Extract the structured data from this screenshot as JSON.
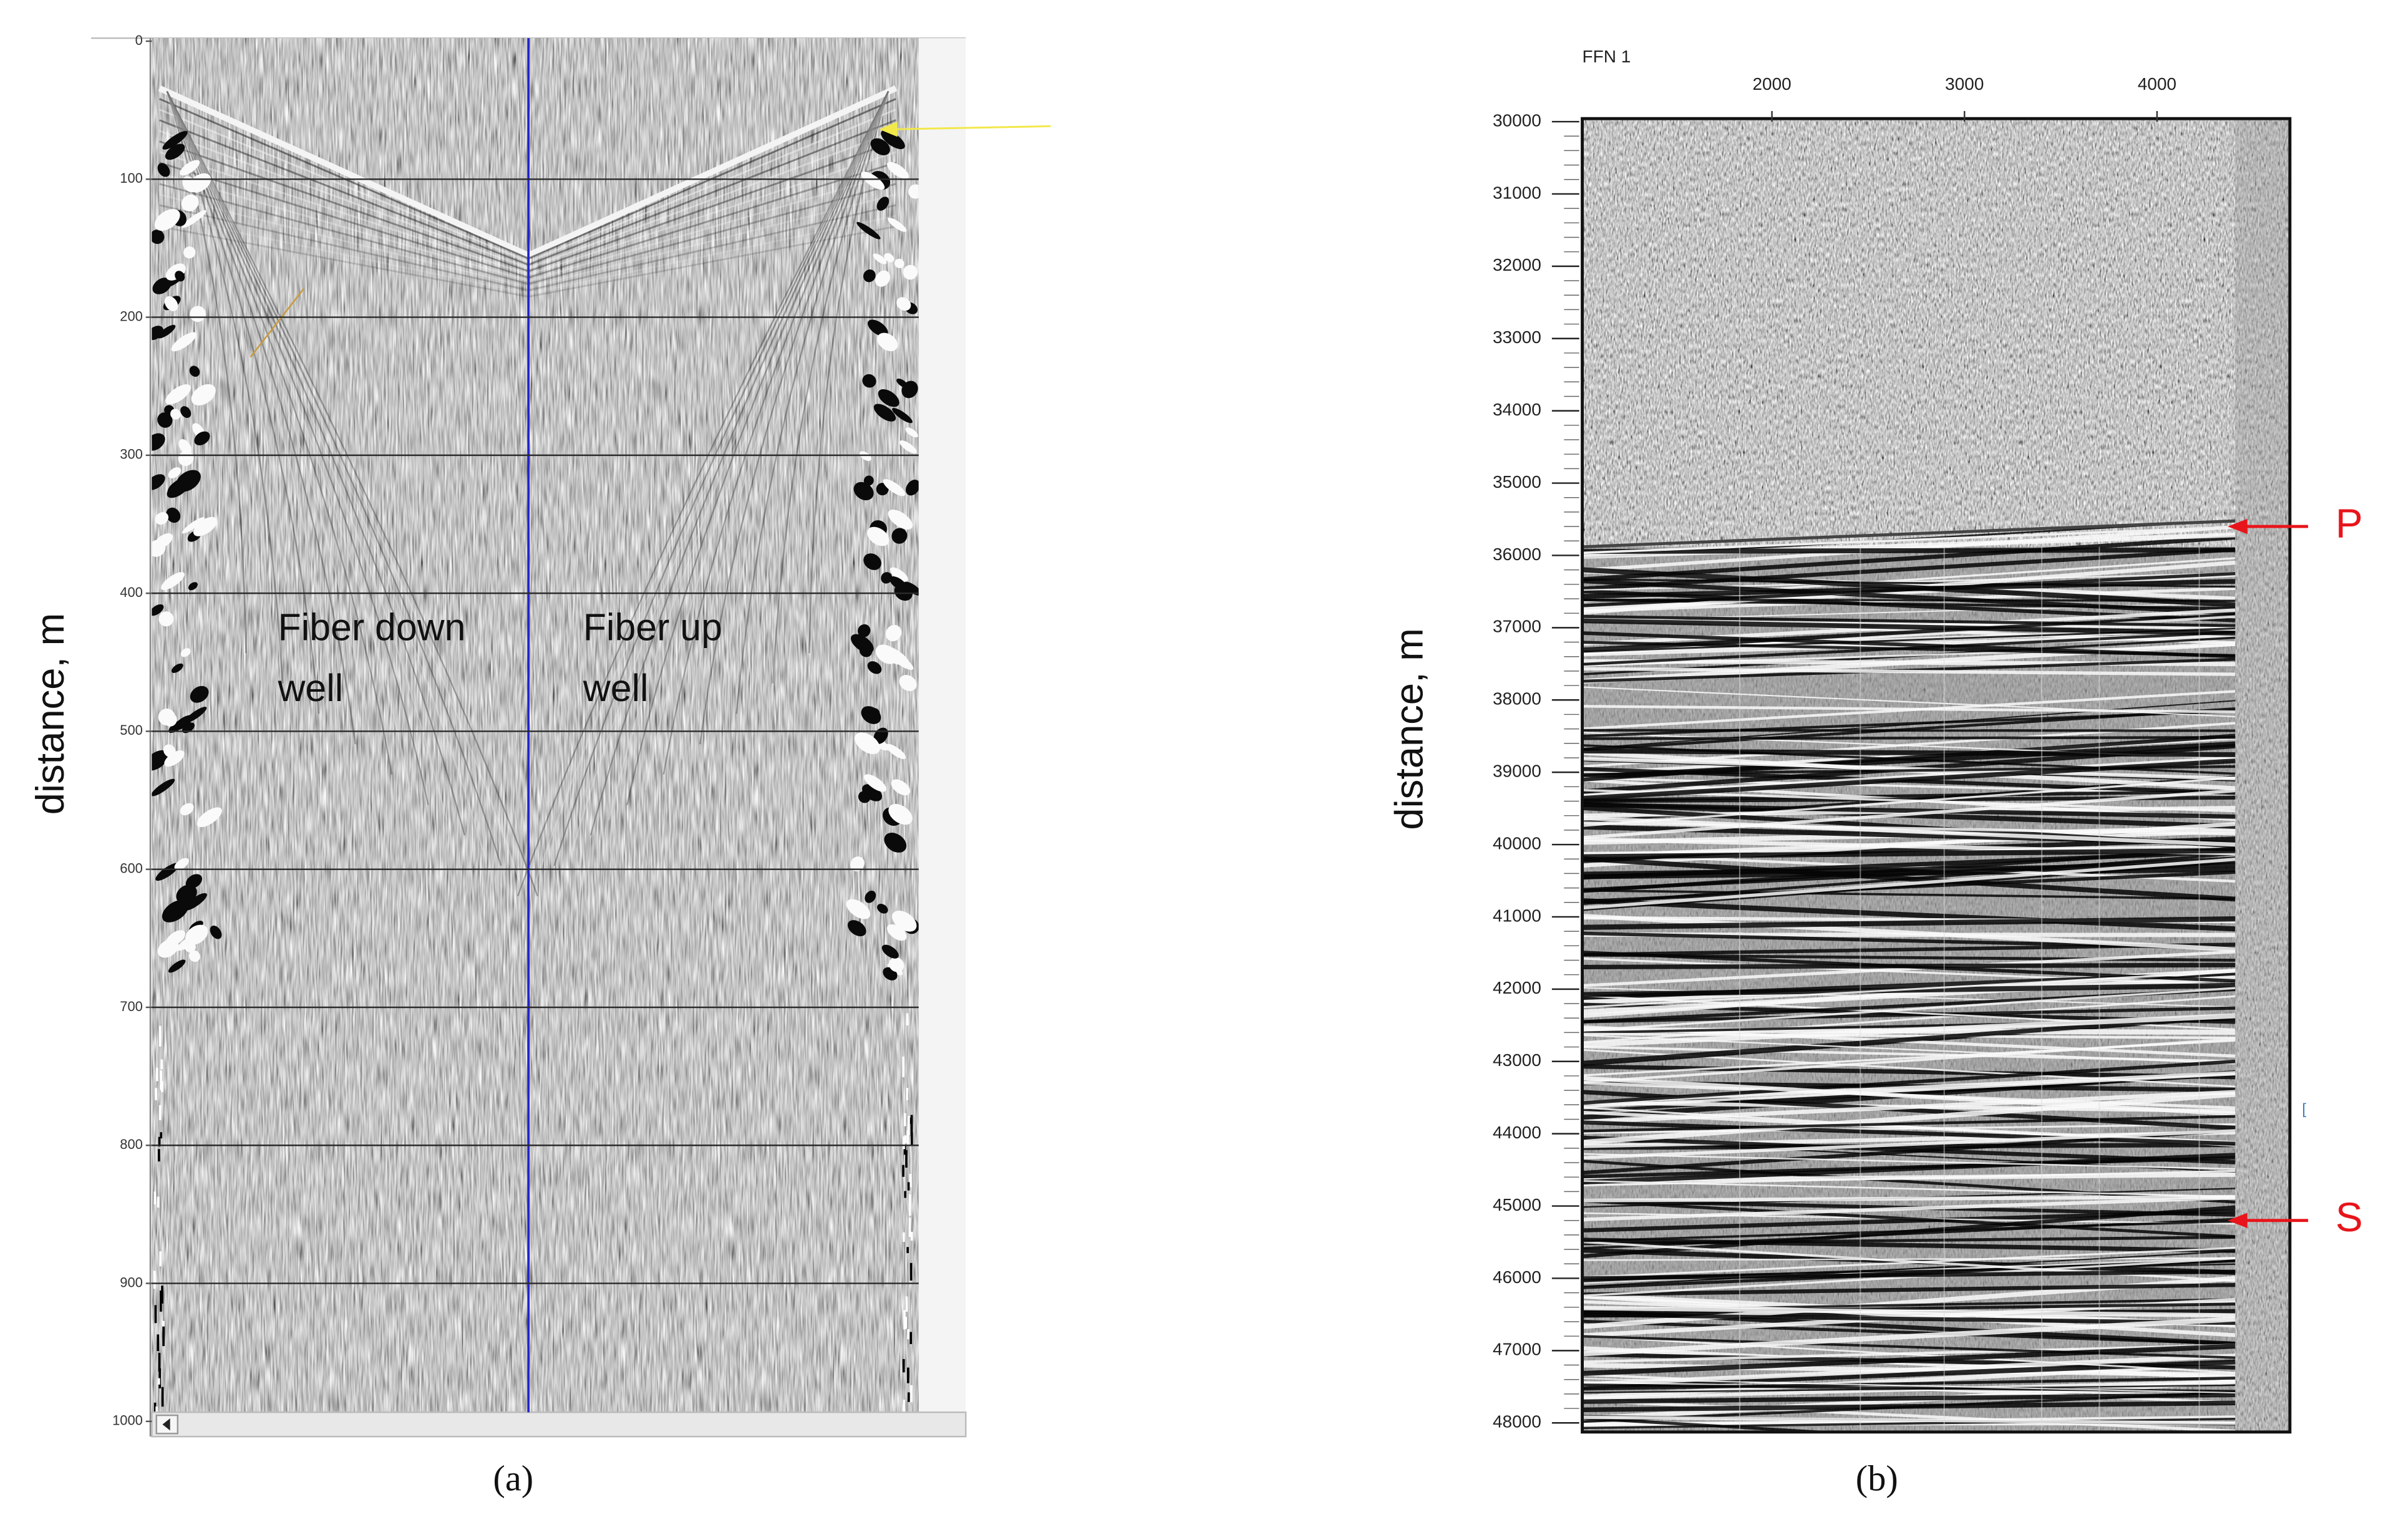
{
  "chart_data": [
    {
      "type": "seismic",
      "ylabel": "distance, m",
      "caption": "(a)",
      "ylim": [
        0,
        1000
      ],
      "yticks": [
        0,
        100,
        200,
        300,
        400,
        500,
        600,
        700,
        800,
        900,
        1000
      ],
      "grid": true,
      "annotations": [
        [
          "Fiber down",
          "well"
        ],
        [
          "Fiber up",
          "well"
        ]
      ]
    },
    {
      "type": "seismic",
      "title": "FFN 1",
      "ylabel": "distance, m",
      "caption": "(b)",
      "xlim": [
        1015,
        4690
      ],
      "xticks": [
        2000,
        3000,
        4000
      ],
      "ylim": [
        30000,
        48000
      ],
      "yticks": [
        30000,
        31000,
        32000,
        33000,
        34000,
        35000,
        36000,
        37000,
        38000,
        39000,
        40000,
        41000,
        42000,
        43000,
        44000,
        45000,
        46000,
        47000,
        48000
      ],
      "annotations": [
        {
          "text": "P",
          "y": 35600
        },
        {
          "text": "S",
          "y": 45200
        }
      ]
    }
  ]
}
